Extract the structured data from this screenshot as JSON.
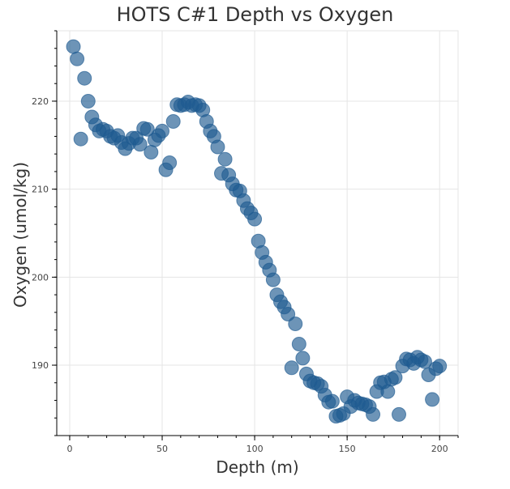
{
  "chart_data": {
    "type": "scatter",
    "title": "HOTS C#1 Depth vs Oxygen",
    "xlabel": "Depth (m)",
    "ylabel": "Oxygen (umol/kg)",
    "xlim": [
      -7,
      210
    ],
    "ylim": [
      182,
      228
    ],
    "xticks": [
      0,
      50,
      100,
      150,
      200
    ],
    "yticks": [
      190,
      200,
      210,
      220
    ],
    "grid": true,
    "legend": "none",
    "marker_color": "#1f5a91",
    "series": [
      {
        "x": [
          2,
          4,
          6,
          8,
          10,
          12,
          14,
          16,
          18,
          20,
          22,
          24,
          26,
          28,
          30,
          32,
          34,
          36,
          38,
          40,
          42,
          44,
          46,
          48,
          50,
          52,
          54,
          56,
          58,
          60,
          62,
          64,
          66,
          68,
          70,
          72,
          74,
          76,
          78,
          80,
          82,
          84,
          86,
          88,
          90,
          92,
          94,
          96,
          98,
          100,
          102,
          104,
          106,
          108,
          110,
          112,
          114,
          116,
          118,
          120,
          122,
          124,
          126,
          128,
          130,
          132,
          134,
          136,
          138,
          140,
          142,
          144,
          146,
          148,
          150,
          152,
          154,
          156,
          158,
          160,
          162,
          164,
          166,
          168,
          170,
          172,
          174,
          176,
          178,
          180,
          182,
          184,
          186,
          188,
          190,
          192,
          194,
          196,
          198,
          200
        ],
        "y": [
          226.2,
          224.8,
          215.7,
          222.6,
          220,
          218.2,
          217.3,
          216.6,
          216.8,
          216.6,
          216,
          215.8,
          216.1,
          215.3,
          214.6,
          215.2,
          215.8,
          215.8,
          215.1,
          216.9,
          216.8,
          214.2,
          215.6,
          216.1,
          216.6,
          212.2,
          213,
          217.7,
          219.6,
          219.5,
          219.6,
          219.9,
          219.5,
          219.6,
          219.5,
          219,
          217.7,
          216.6,
          216,
          214.8,
          211.8,
          213.4,
          211.6,
          210.6,
          209.9,
          209.8,
          208.7,
          207.8,
          207.3,
          206.6,
          204.1,
          202.8,
          201.7,
          200.8,
          199.7,
          198,
          197.2,
          196.6,
          195.8,
          189.7,
          194.7,
          192.4,
          190.8,
          189,
          188.2,
          188,
          187.9,
          187.6,
          186.6,
          185.8,
          185.9,
          184.2,
          184.3,
          184.5,
          186.4,
          185.3,
          186,
          185.7,
          185.6,
          185.5,
          185.3,
          184.4,
          187,
          188,
          188.1,
          187,
          188.4,
          188.6,
          184.4,
          189.9,
          190.7,
          190.6,
          190.2,
          190.9,
          190.6,
          190.4,
          188.9,
          186.1,
          189.6,
          189.9
        ]
      }
    ]
  }
}
